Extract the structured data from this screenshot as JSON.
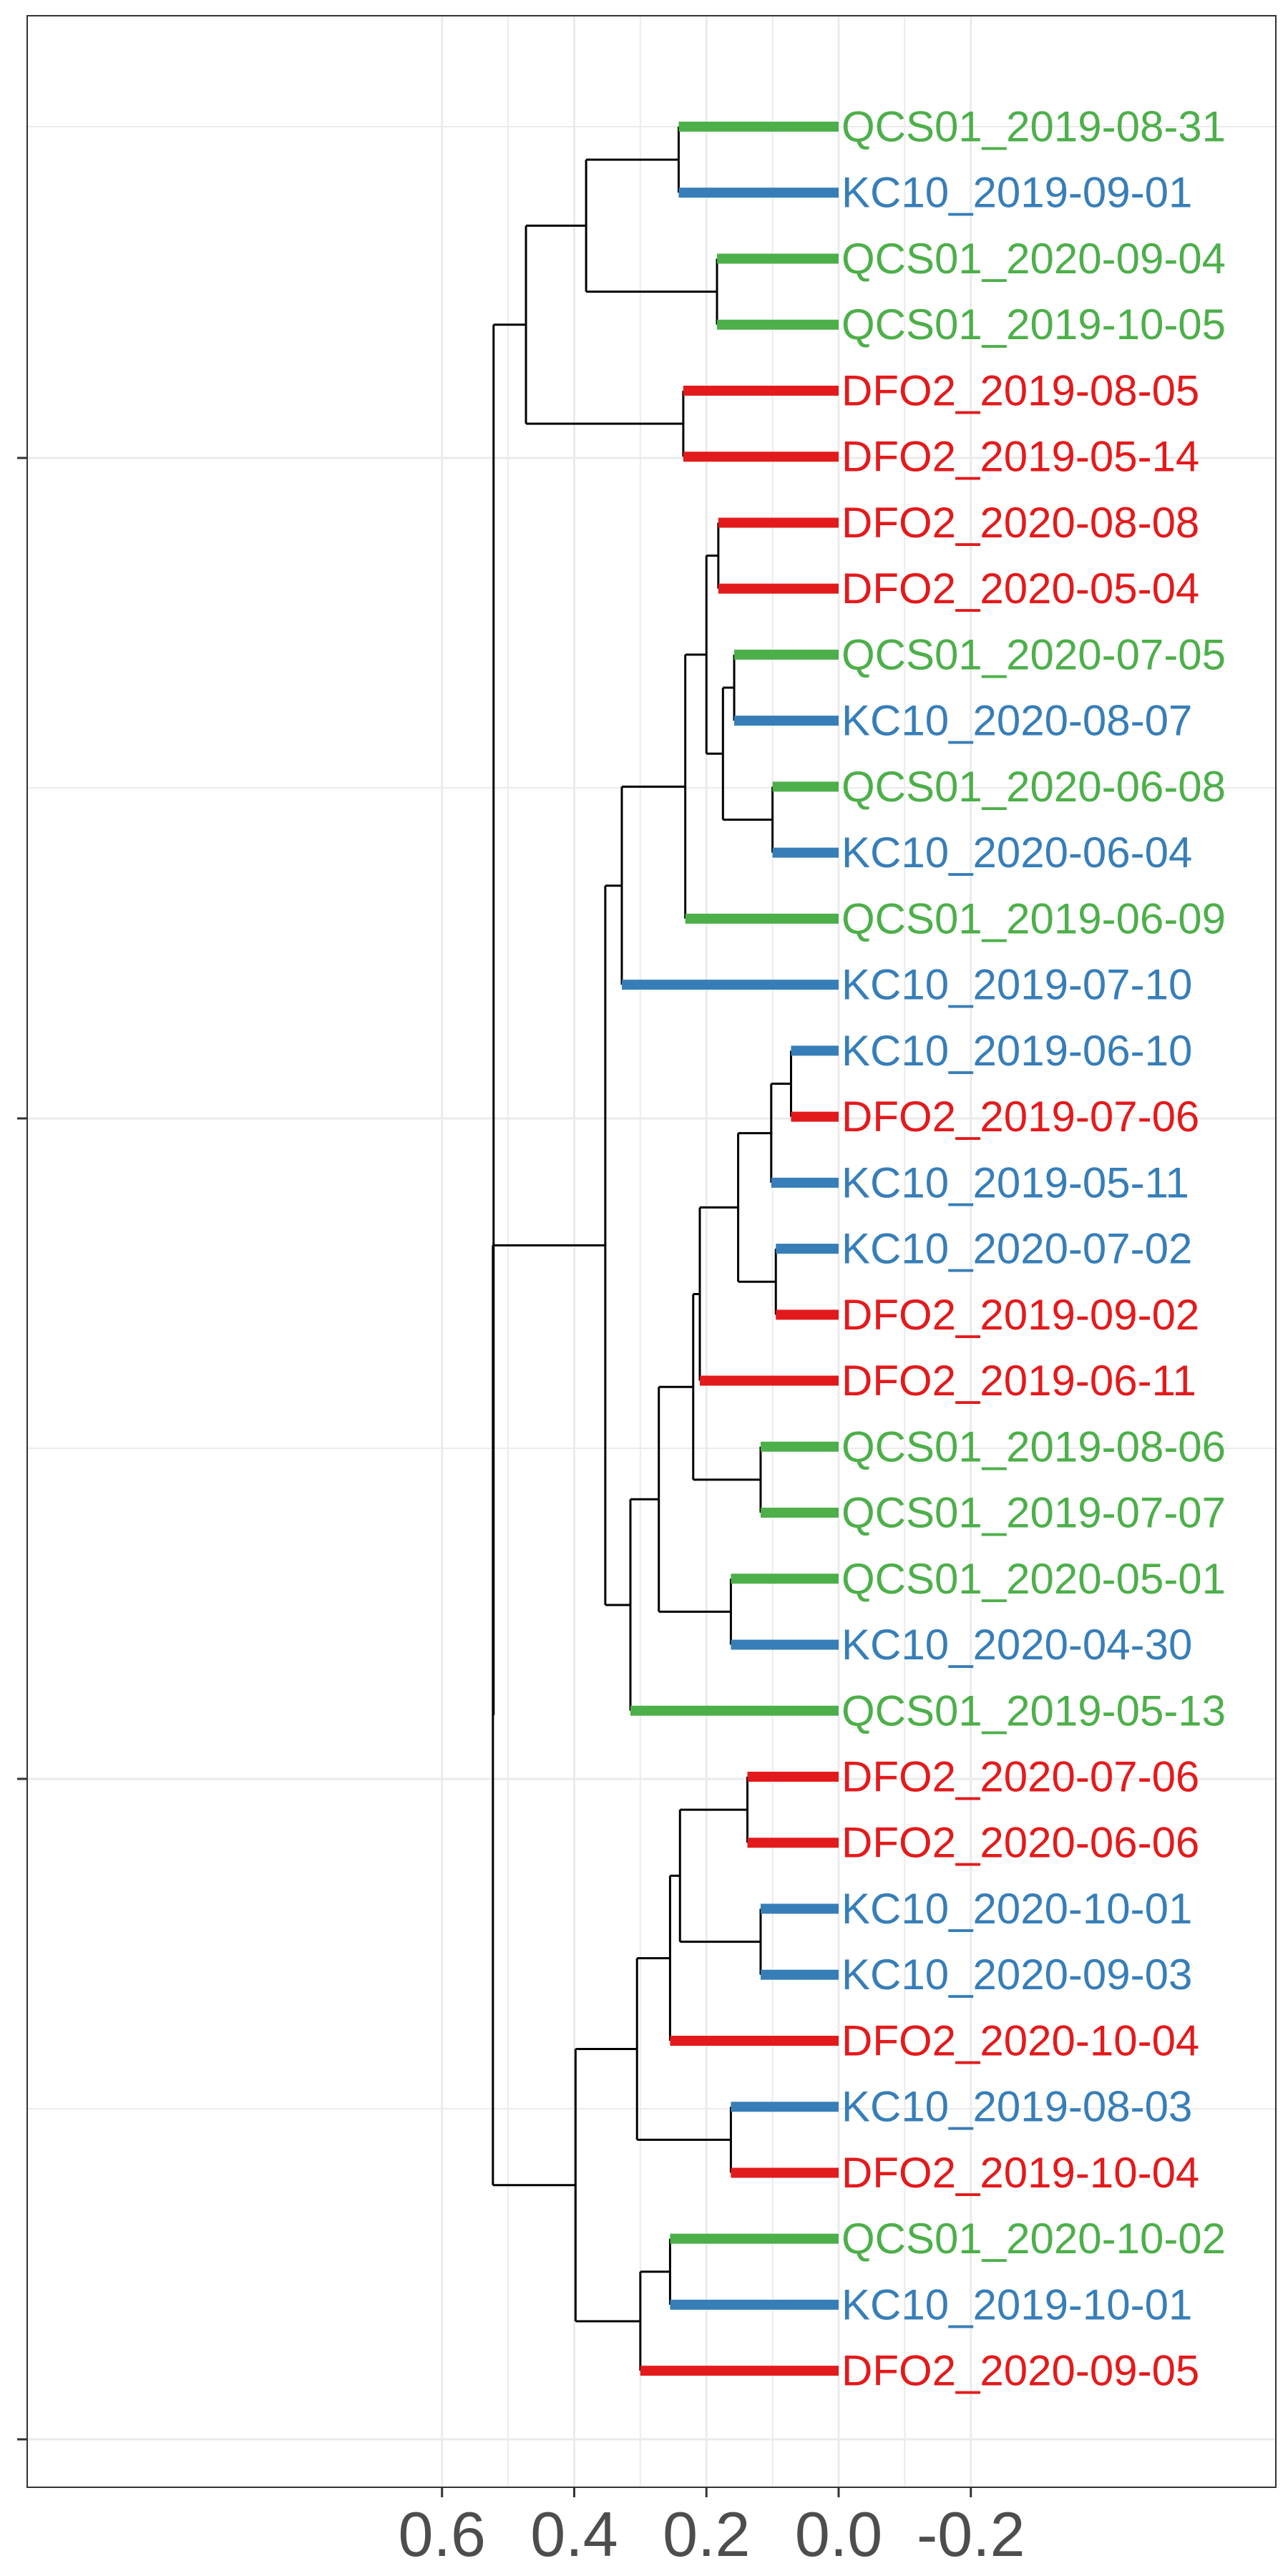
{
  "chart_data": {
    "type": "dendrogram",
    "title": "",
    "xlabel": "",
    "ylabel": "",
    "orientation": "horizontal",
    "x_axis": {
      "reversed": true,
      "xlim": [
        0.64,
        -0.34
      ],
      "ticks": [
        0.6,
        0.4,
        0.2,
        0.0,
        -0.2
      ],
      "tick_labels": [
        "0.6",
        "0.4",
        "0.2",
        "0.0",
        "-0.2"
      ]
    },
    "grid": true,
    "colors": {
      "DFO2": "#E31A1C",
      "KC10": "#377EB8",
      "QCS01": "#4DAF4A",
      "branch": "#000000",
      "grid": "#EBEBEB",
      "panel_border": "#333333"
    },
    "leaves": [
      {
        "label": "QCS01_2019-08-31",
        "group": "QCS01"
      },
      {
        "label": "KC10_2019-09-01",
        "group": "KC10"
      },
      {
        "label": "QCS01_2020-09-04",
        "group": "QCS01"
      },
      {
        "label": "QCS01_2019-10-05",
        "group": "QCS01"
      },
      {
        "label": "DFO2_2019-08-05",
        "group": "DFO2"
      },
      {
        "label": "DFO2_2019-05-14",
        "group": "DFO2"
      },
      {
        "label": "DFO2_2020-08-08",
        "group": "DFO2"
      },
      {
        "label": "DFO2_2020-05-04",
        "group": "DFO2"
      },
      {
        "label": "QCS01_2020-07-05",
        "group": "QCS01"
      },
      {
        "label": "KC10_2020-08-07",
        "group": "KC10"
      },
      {
        "label": "QCS01_2020-06-08",
        "group": "QCS01"
      },
      {
        "label": "KC10_2020-06-04",
        "group": "KC10"
      },
      {
        "label": "QCS01_2019-06-09",
        "group": "QCS01"
      },
      {
        "label": "KC10_2019-07-10",
        "group": "KC10"
      },
      {
        "label": "KC10_2019-06-10",
        "group": "KC10"
      },
      {
        "label": "DFO2_2019-07-06",
        "group": "DFO2"
      },
      {
        "label": "KC10_2019-05-11",
        "group": "KC10"
      },
      {
        "label": "KC10_2020-07-02",
        "group": "KC10"
      },
      {
        "label": "DFO2_2019-09-02",
        "group": "DFO2"
      },
      {
        "label": "DFO2_2019-06-11",
        "group": "DFO2"
      },
      {
        "label": "QCS01_2019-08-06",
        "group": "QCS01"
      },
      {
        "label": "QCS01_2019-07-07",
        "group": "QCS01"
      },
      {
        "label": "QCS01_2020-05-01",
        "group": "QCS01"
      },
      {
        "label": "KC10_2020-04-30",
        "group": "KC10"
      },
      {
        "label": "QCS01_2019-05-13",
        "group": "QCS01"
      },
      {
        "label": "DFO2_2020-07-06",
        "group": "DFO2"
      },
      {
        "label": "DFO2_2020-06-06",
        "group": "DFO2"
      },
      {
        "label": "KC10_2020-10-01",
        "group": "KC10"
      },
      {
        "label": "KC10_2020-09-03",
        "group": "KC10"
      },
      {
        "label": "DFO2_2020-10-04",
        "group": "DFO2"
      },
      {
        "label": "KC10_2019-08-03",
        "group": "KC10"
      },
      {
        "label": "DFO2_2019-10-04",
        "group": "DFO2"
      },
      {
        "label": "QCS01_2020-10-02",
        "group": "QCS01"
      },
      {
        "label": "KC10_2019-10-01",
        "group": "KC10"
      },
      {
        "label": "DFO2_2020-09-05",
        "group": "DFO2"
      }
    ],
    "merges": [
      {
        "id": "n1",
        "height": 0.242,
        "children": [
          0,
          1
        ]
      },
      {
        "id": "n2",
        "height": 0.184,
        "children": [
          2,
          3
        ]
      },
      {
        "id": "n3",
        "height": 0.382,
        "children": [
          "n1",
          "n2"
        ]
      },
      {
        "id": "n4",
        "height": 0.235,
        "children": [
          4,
          5
        ]
      },
      {
        "id": "n5",
        "height": 0.473,
        "children": [
          "n3",
          "n4"
        ]
      },
      {
        "id": "n6",
        "height": 0.182,
        "children": [
          6,
          7
        ]
      },
      {
        "id": "n7",
        "height": 0.158,
        "children": [
          8,
          9
        ]
      },
      {
        "id": "n8",
        "height": 0.1,
        "children": [
          10,
          11
        ]
      },
      {
        "id": "n9",
        "height": 0.175,
        "children": [
          "n7",
          "n8"
        ]
      },
      {
        "id": "n10",
        "height": 0.2,
        "children": [
          "n6",
          "n9"
        ]
      },
      {
        "id": "n11",
        "height": 0.232,
        "children": [
          "n10",
          12
        ]
      },
      {
        "id": "n12",
        "height": 0.328,
        "children": [
          "n11",
          13
        ]
      },
      {
        "id": "n13",
        "height": 0.072,
        "children": [
          14,
          15
        ]
      },
      {
        "id": "n14",
        "height": 0.102,
        "children": [
          "n13",
          16
        ]
      },
      {
        "id": "n15",
        "height": 0.095,
        "children": [
          17,
          18
        ]
      },
      {
        "id": "n16",
        "height": 0.152,
        "children": [
          "n14",
          "n15"
        ]
      },
      {
        "id": "n17",
        "height": 0.21,
        "children": [
          "n16",
          19
        ]
      },
      {
        "id": "n18",
        "height": 0.118,
        "children": [
          20,
          21
        ]
      },
      {
        "id": "n19",
        "height": 0.22,
        "children": [
          "n17",
          "n18"
        ]
      },
      {
        "id": "n20",
        "height": 0.163,
        "children": [
          22,
          23
        ]
      },
      {
        "id": "n21",
        "height": 0.272,
        "children": [
          "n19",
          "n20"
        ]
      },
      {
        "id": "n22",
        "height": 0.315,
        "children": [
          "n21",
          24
        ]
      },
      {
        "id": "n23",
        "height": 0.353,
        "children": [
          "n12",
          "n22"
        ]
      },
      {
        "id": "n24",
        "height": 0.138,
        "children": [
          25,
          26
        ]
      },
      {
        "id": "n25",
        "height": 0.118,
        "children": [
          27,
          28
        ]
      },
      {
        "id": "n26",
        "height": 0.24,
        "children": [
          "n24",
          "n25"
        ]
      },
      {
        "id": "n27",
        "height": 0.255,
        "children": [
          "n26",
          29
        ]
      },
      {
        "id": "n28",
        "height": 0.163,
        "children": [
          30,
          31
        ]
      },
      {
        "id": "n29",
        "height": 0.305,
        "children": [
          "n27",
          "n28"
        ]
      },
      {
        "id": "n30",
        "height": 0.255,
        "children": [
          32,
          33
        ]
      },
      {
        "id": "n31",
        "height": 0.3,
        "children": [
          "n30",
          34
        ]
      },
      {
        "id": "n32",
        "height": 0.398,
        "children": [
          "n29",
          "n31"
        ]
      },
      {
        "id": "n33",
        "height": 0.523,
        "children": [
          "n23",
          "n32"
        ]
      },
      {
        "id": "n34",
        "height": 0.522,
        "children": [
          "n5",
          "n33"
        ]
      }
    ]
  }
}
